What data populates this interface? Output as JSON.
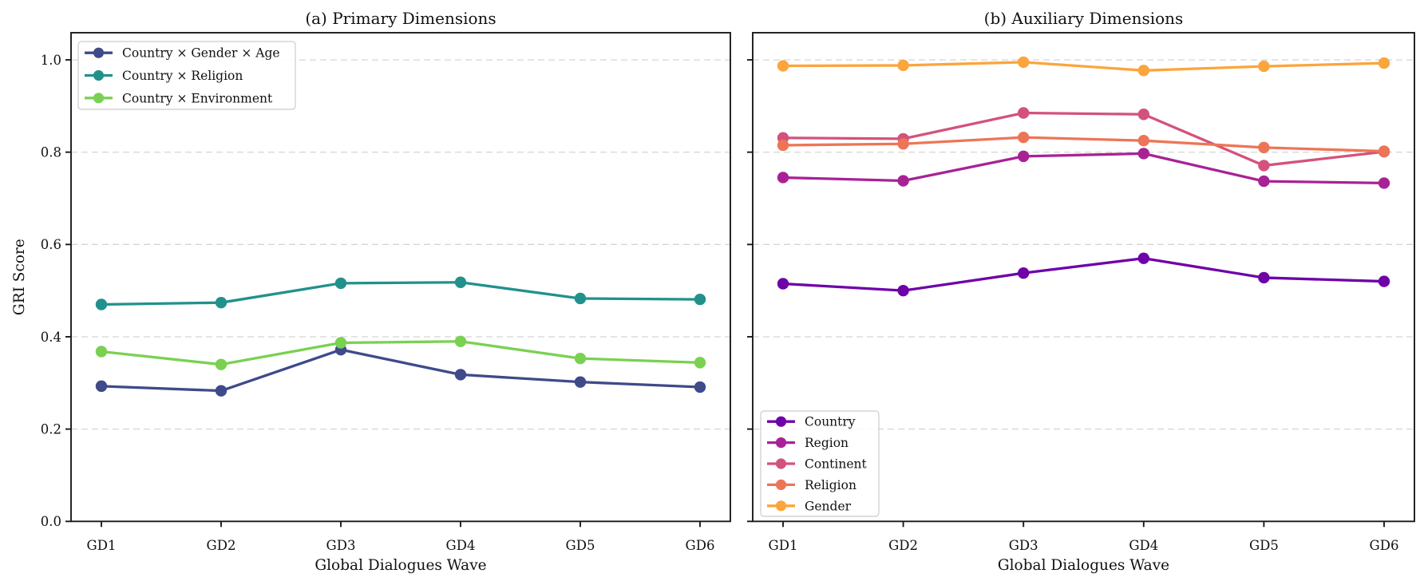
{
  "figure": {
    "xlabel": "Global Dialogues Wave",
    "ylabel": "GRI Score",
    "background_color": "#ffffff",
    "spine_color": "#1a1a1a",
    "gridline_color": "#d5d5d5",
    "grid_style": "dashed-horizontal"
  },
  "chart_data": [
    {
      "type": "line",
      "title": "(a) Primary Dimensions",
      "xlabel": "Global Dialogues Wave",
      "ylabel": "GRI Score",
      "categories": [
        "GD1",
        "GD2",
        "GD3",
        "GD4",
        "GD5",
        "GD6"
      ],
      "yticks": [
        0.0,
        0.2,
        0.4,
        0.6,
        0.8,
        1.0
      ],
      "ytick_labels": [
        "0.0",
        "0.2",
        "0.4",
        "0.6",
        "0.8",
        "1.0"
      ],
      "show_ytick_labels": true,
      "ylim": [
        0,
        1.06
      ],
      "grid": true,
      "legend_position": "upper-left",
      "series": [
        {
          "name": "Country × Gender × Age",
          "color": "#3f4a8a",
          "values": [
            0.293,
            0.283,
            0.372,
            0.318,
            0.302,
            0.291
          ]
        },
        {
          "name": "Country × Religion",
          "color": "#21918c",
          "values": [
            0.47,
            0.474,
            0.516,
            0.518,
            0.483,
            0.481
          ]
        },
        {
          "name": "Country × Environment",
          "color": "#7ad151",
          "values": [
            0.368,
            0.34,
            0.387,
            0.39,
            0.353,
            0.344
          ]
        }
      ]
    },
    {
      "type": "line",
      "title": "(b) Auxiliary Dimensions",
      "xlabel": "Global Dialogues Wave",
      "ylabel": "",
      "categories": [
        "GD1",
        "GD2",
        "GD3",
        "GD4",
        "GD5",
        "GD6"
      ],
      "yticks": [
        0.0,
        0.2,
        0.4,
        0.6,
        0.8,
        1.0
      ],
      "ytick_labels": [
        "0.0",
        "0.2",
        "0.4",
        "0.6",
        "0.8",
        "1.0"
      ],
      "show_ytick_labels": false,
      "ylim": [
        0,
        1.06
      ],
      "grid": true,
      "legend_position": "lower-left",
      "series": [
        {
          "name": "Country",
          "color": "#6e01a8",
          "values": [
            0.515,
            0.5,
            0.538,
            0.57,
            0.528,
            0.52
          ]
        },
        {
          "name": "Region",
          "color": "#a82296",
          "values": [
            0.745,
            0.738,
            0.791,
            0.797,
            0.737,
            0.733
          ]
        },
        {
          "name": "Continent",
          "color": "#d3527b",
          "values": [
            0.831,
            0.829,
            0.885,
            0.882,
            0.771,
            0.801
          ]
        },
        {
          "name": "Religion",
          "color": "#ed7557",
          "values": [
            0.815,
            0.818,
            0.832,
            0.825,
            0.81,
            0.802
          ]
        },
        {
          "name": "Gender",
          "color": "#fba53c",
          "values": [
            0.987,
            0.988,
            0.995,
            0.977,
            0.986,
            0.993
          ]
        }
      ]
    }
  ]
}
